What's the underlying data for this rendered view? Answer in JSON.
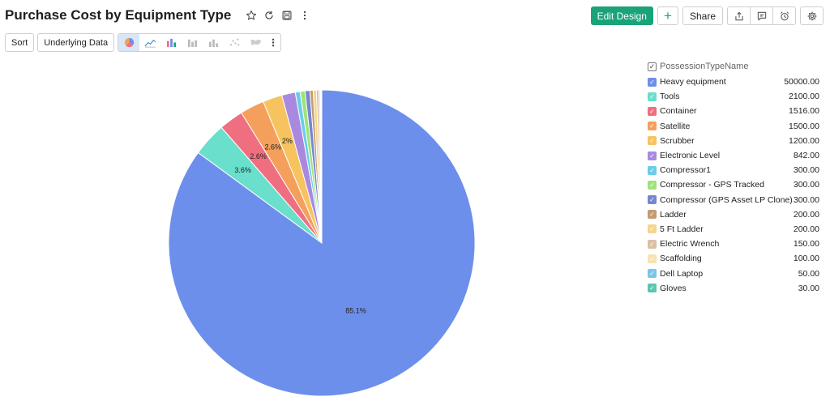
{
  "header": {
    "title": "Purchase Cost by Equipment Type",
    "edit_design_label": "Edit Design",
    "add_label": "+",
    "share_label": "Share"
  },
  "toolbar": {
    "sort_label": "Sort",
    "underlying_data_label": "Underlying Data"
  },
  "icons": {
    "star": "star-icon",
    "refresh": "refresh-icon",
    "save": "save-icon",
    "more": "more-vertical-icon",
    "export": "export-icon",
    "comment": "comment-icon",
    "schedule": "alarm-icon",
    "settings": "gear-icon"
  },
  "chart_data": {
    "type": "pie",
    "legend_title": "PossessionTypeName",
    "legend_position": "right",
    "slices": [
      {
        "name": "Heavy equipment",
        "value": 50000,
        "value_label": "50000.00",
        "color": "#6d8fec",
        "pct_label": "85.1%"
      },
      {
        "name": "Tools",
        "value": 2100,
        "value_label": "2100.00",
        "color": "#6adfcb",
        "pct_label": "3.6%"
      },
      {
        "name": "Container",
        "value": 1516,
        "value_label": "1516.00",
        "color": "#ef6f81",
        "pct_label": "2.6%"
      },
      {
        "name": "Satellite",
        "value": 1500,
        "value_label": "1500.00",
        "color": "#f49f5c",
        "pct_label": "2.6%"
      },
      {
        "name": "Scrubber",
        "value": 1200,
        "value_label": "1200.00",
        "color": "#f6c35f",
        "pct_label": "2%"
      },
      {
        "name": "Electronic Level",
        "value": 842,
        "value_label": "842.00",
        "color": "#a989e0",
        "pct_label": ""
      },
      {
        "name": "Compressor1",
        "value": 300,
        "value_label": "300.00",
        "color": "#69cde8",
        "pct_label": ""
      },
      {
        "name": "Compressor - GPS Tracked",
        "value": 300,
        "value_label": "300.00",
        "color": "#9fe27a",
        "pct_label": ""
      },
      {
        "name": "Compressor (GPS Asset LP Clone)",
        "value": 300,
        "value_label": "300.00",
        "color": "#7687cf",
        "pct_label": ""
      },
      {
        "name": "Ladder",
        "value": 200,
        "value_label": "200.00",
        "color": "#c49b70",
        "pct_label": ""
      },
      {
        "name": "5 Ft Ladder",
        "value": 200,
        "value_label": "200.00",
        "color": "#f5d48c",
        "pct_label": ""
      },
      {
        "name": "Electric Wrench",
        "value": 150,
        "value_label": "150.00",
        "color": "#dcc0a6",
        "pct_label": ""
      },
      {
        "name": "Scaffolding",
        "value": 100,
        "value_label": "100.00",
        "color": "#f7e2b3",
        "pct_label": ""
      },
      {
        "name": "Dell Laptop",
        "value": 50,
        "value_label": "50.00",
        "color": "#76c8e6",
        "pct_label": ""
      },
      {
        "name": "Gloves",
        "value": 30,
        "value_label": "30.00",
        "color": "#5bc6b0",
        "pct_label": ""
      }
    ]
  }
}
